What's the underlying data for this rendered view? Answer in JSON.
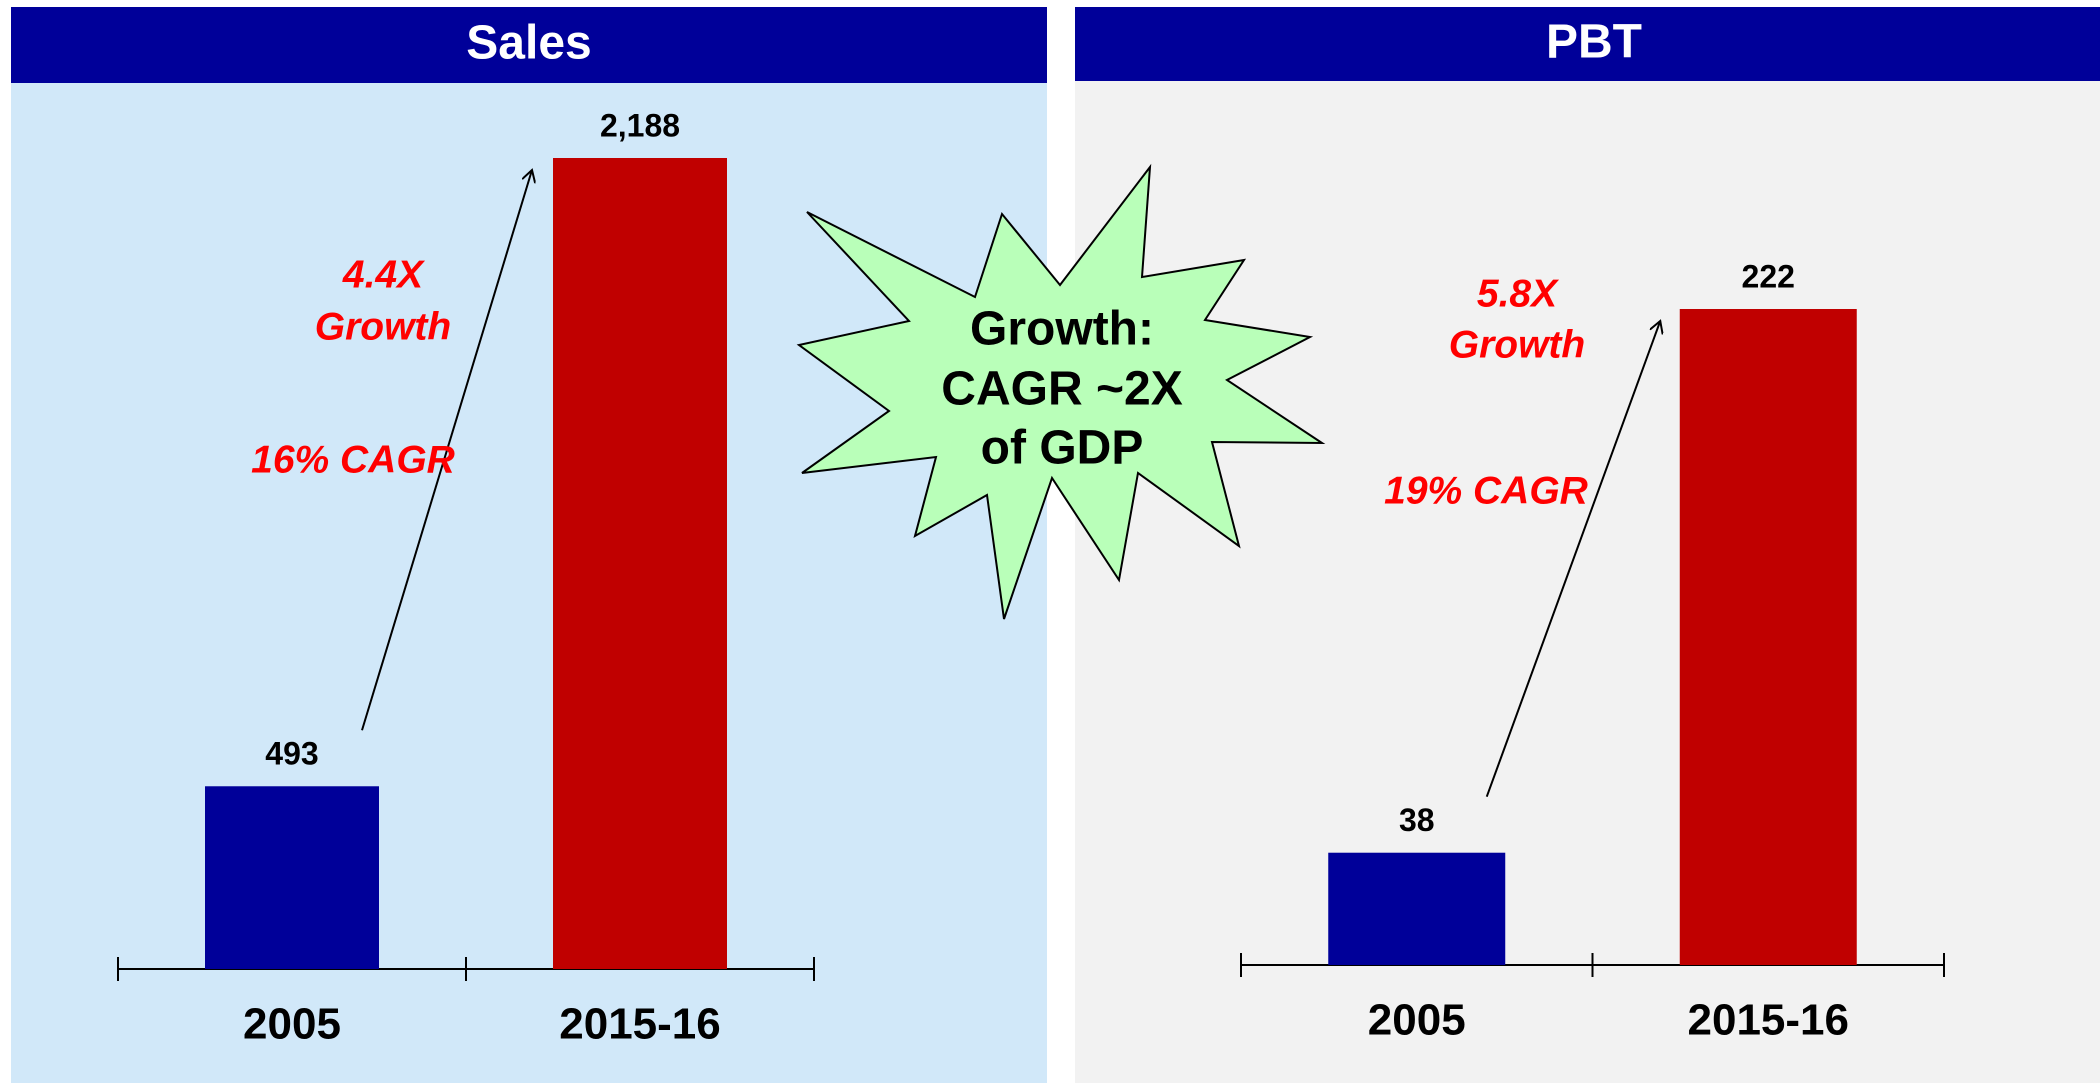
{
  "chart_data": [
    {
      "type": "bar",
      "title": "Sales",
      "categories": [
        "2005",
        "2015-16"
      ],
      "values": [
        493,
        2188
      ],
      "value_labels": [
        "493",
        "2,188"
      ],
      "colors": [
        "#000099",
        "#c00000"
      ],
      "annotations": [
        "4.4X",
        "Growth",
        "16% CAGR"
      ]
    },
    {
      "type": "bar",
      "title": "PBT",
      "categories": [
        "2005",
        "2015-16"
      ],
      "values": [
        38,
        222
      ],
      "value_labels": [
        "38",
        "222"
      ],
      "colors": [
        "#000099",
        "#c00000"
      ],
      "annotations": [
        "5.8X",
        "Growth",
        "19% CAGR"
      ]
    }
  ],
  "callout": [
    "Growth:",
    "CAGR ~2X",
    "of GDP"
  ]
}
